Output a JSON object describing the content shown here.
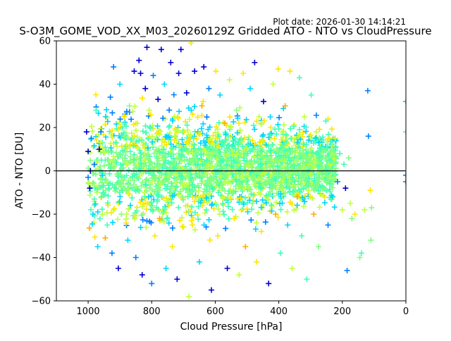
{
  "header": {
    "plot_date": "Plot date: 2026-01-30 14:14:21",
    "title": "S-O3M_GOME_VOD_XX_M03_20260129Z Gridded ATO - NTO vs CloudPressure"
  },
  "colors": {
    "zero_line": "#000000",
    "palette": [
      "#0000cd",
      "#0080ff",
      "#00d5ff",
      "#40ffb7",
      "#80ff80",
      "#c0ff40",
      "#ffe600",
      "#ffaa00"
    ]
  },
  "chart_data": {
    "type": "scatter",
    "marker": "plus",
    "title": "S-O3M_GOME_VOD_XX_M03_20260129Z Gridded ATO - NTO vs CloudPressure",
    "xlabel": "Cloud Pressure [hPa]",
    "ylabel": "ATO - NTO [DU]",
    "xlim": [
      1100,
      0
    ],
    "ylim": [
      -60,
      60
    ],
    "x_inverted": true,
    "xticks": [
      1000,
      800,
      600,
      400,
      200,
      0
    ],
    "yticks": [
      -60,
      -40,
      -20,
      0,
      20,
      40,
      60
    ],
    "xtick_labels": [
      "1000",
      "800",
      "600",
      "400",
      "200",
      "0"
    ],
    "ytick_labels": [
      "−60",
      "−40",
      "−20",
      "0",
      "20",
      "40",
      "60"
    ],
    "reference_line_y": 0,
    "grid": false,
    "points": [
      [
        960,
        18,
        1
      ],
      [
        965,
        10,
        0
      ],
      [
        955,
        -2,
        2
      ],
      [
        958,
        -12,
        3
      ],
      [
        945,
        25,
        2
      ],
      [
        940,
        -25,
        3
      ],
      [
        930,
        34,
        1
      ],
      [
        925,
        -38,
        1
      ],
      [
        920,
        48,
        1
      ],
      [
        915,
        5,
        4
      ],
      [
        905,
        -45,
        0
      ],
      [
        900,
        40,
        2
      ],
      [
        895,
        -20,
        4
      ],
      [
        880,
        12,
        5
      ],
      [
        875,
        -32,
        2
      ],
      [
        870,
        30,
        4
      ],
      [
        862,
        -8,
        3
      ],
      [
        855,
        46,
        0
      ],
      [
        850,
        -40,
        1
      ],
      [
        845,
        22,
        5
      ],
      [
        840,
        51,
        0
      ],
      [
        835,
        45,
        0
      ],
      [
        830,
        -48,
        0
      ],
      [
        825,
        3,
        4
      ],
      [
        820,
        38,
        0
      ],
      [
        815,
        57,
        0
      ],
      [
        812,
        -15,
        6
      ],
      [
        808,
        28,
        5
      ],
      [
        800,
        -52,
        1
      ],
      [
        795,
        44,
        1
      ],
      [
        790,
        -30,
        6
      ],
      [
        785,
        15,
        4
      ],
      [
        780,
        33,
        0
      ],
      [
        775,
        -22,
        7
      ],
      [
        770,
        56,
        0
      ],
      [
        765,
        -5,
        4
      ],
      [
        760,
        40,
        2
      ],
      [
        755,
        -45,
        2
      ],
      [
        748,
        8,
        3
      ],
      [
        740,
        50,
        0
      ],
      [
        735,
        -35,
        6
      ],
      [
        728,
        25,
        5
      ],
      [
        720,
        -50,
        0
      ],
      [
        715,
        45,
        0
      ],
      [
        708,
        56,
        0
      ],
      [
        702,
        -12,
        4
      ],
      [
        698,
        18,
        6
      ],
      [
        690,
        36,
        0
      ],
      [
        683,
        -58,
        5
      ],
      [
        676,
        59,
        6
      ],
      [
        672,
        -25,
        6
      ],
      [
        665,
        46,
        0
      ],
      [
        658,
        5,
        4
      ],
      [
        650,
        -42,
        2
      ],
      [
        642,
        30,
        7
      ],
      [
        636,
        48,
        0
      ],
      [
        628,
        -18,
        3
      ],
      [
        620,
        38,
        1
      ],
      [
        612,
        -55,
        0
      ],
      [
        605,
        12,
        5
      ],
      [
        598,
        46,
        6
      ],
      [
        592,
        -30,
        6
      ],
      [
        585,
        35,
        2
      ],
      [
        578,
        -8,
        4
      ],
      [
        570,
        22,
        7
      ],
      [
        562,
        -45,
        0
      ],
      [
        555,
        42,
        5
      ],
      [
        548,
        2,
        3
      ],
      [
        540,
        -22,
        6
      ],
      [
        533,
        28,
        4
      ],
      [
        525,
        -48,
        5
      ],
      [
        518,
        15,
        4
      ],
      [
        512,
        45,
        6
      ],
      [
        505,
        -35,
        7
      ],
      [
        498,
        8,
        3
      ],
      [
        490,
        38,
        2
      ],
      [
        483,
        -15,
        4
      ],
      [
        476,
        50,
        0
      ],
      [
        470,
        -42,
        6
      ],
      [
        462,
        25,
        5
      ],
      [
        455,
        -28,
        6
      ],
      [
        448,
        32,
        0
      ],
      [
        440,
        -5,
        4
      ],
      [
        432,
        -52,
        0
      ],
      [
        425,
        20,
        6
      ],
      [
        418,
        40,
        5
      ],
      [
        410,
        -20,
        7
      ],
      [
        402,
        47,
        6
      ],
      [
        395,
        -38,
        3
      ],
      [
        388,
        10,
        4
      ],
      [
        380,
        30,
        7
      ],
      [
        372,
        -25,
        2
      ],
      [
        365,
        46,
        6
      ],
      [
        358,
        -45,
        5
      ],
      [
        350,
        15,
        5
      ],
      [
        342,
        -12,
        7
      ],
      [
        335,
        43,
        3
      ],
      [
        328,
        -30,
        3
      ],
      [
        320,
        25,
        5
      ],
      [
        312,
        -50,
        3
      ],
      [
        305,
        5,
        4
      ],
      [
        298,
        35,
        3
      ],
      [
        290,
        -20,
        7
      ],
      [
        282,
        18,
        5
      ],
      [
        275,
        -35,
        4
      ],
      [
        268,
        10,
        3
      ],
      [
        260,
        -8,
        4
      ],
      [
        252,
        23,
        3
      ],
      [
        245,
        -25,
        1
      ],
      [
        238,
        5,
        3
      ],
      [
        230,
        -12,
        2
      ],
      [
        222,
        15,
        5
      ],
      [
        215,
        -5,
        1
      ],
      [
        208,
        8,
        3
      ],
      [
        200,
        -18,
        5
      ],
      [
        195,
        3,
        3
      ],
      [
        190,
        -8,
        0
      ],
      [
        185,
        -46,
        1
      ],
      [
        180,
        6,
        4
      ],
      [
        175,
        -15,
        5
      ],
      [
        170,
        -22,
        4
      ],
      [
        160,
        -20,
        6
      ],
      [
        145,
        -40,
        4
      ],
      [
        140,
        -38,
        3
      ],
      [
        130,
        -18,
        5
      ],
      [
        120,
        37,
        1
      ],
      [
        118,
        16,
        1
      ],
      [
        112,
        -9,
        6
      ],
      [
        110,
        -32,
        4
      ],
      [
        108,
        -17,
        4
      ],
      [
        0,
        32,
        2
      ],
      [
        0,
        18,
        3
      ],
      [
        0,
        -2,
        1
      ],
      [
        0,
        -5,
        1
      ],
      [
        1000,
        9,
        0
      ],
      [
        995,
        -8,
        0
      ],
      [
        990,
        15,
        1
      ],
      [
        985,
        -20,
        2
      ],
      [
        980,
        3,
        1
      ],
      [
        975,
        28,
        3
      ],
      [
        970,
        -35,
        2
      ],
      [
        1005,
        18,
        0
      ],
      [
        1000,
        -3,
        1
      ],
      [
        993,
        0,
        0
      ]
    ]
  }
}
